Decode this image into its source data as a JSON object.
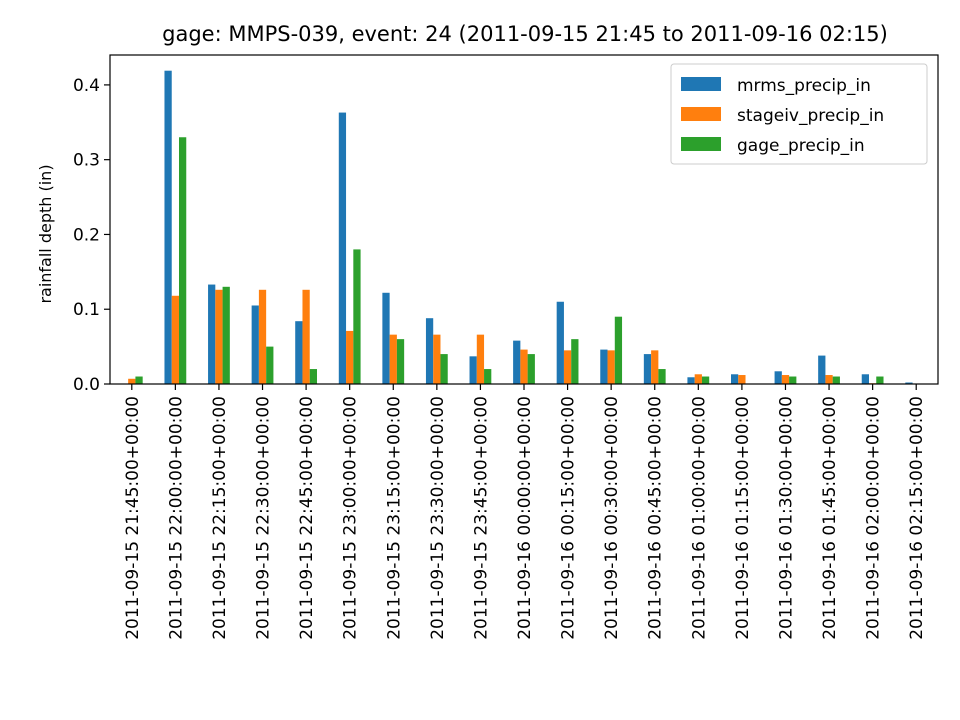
{
  "chart_data": {
    "type": "bar",
    "title": "gage: MMPS-039, event: 24 (2011-09-15 21:45 to 2011-09-16 02:15)",
    "xlabel": "",
    "ylabel": "rainfall depth (in)",
    "ylim": [
      0,
      0.44
    ],
    "yticks": [
      0.0,
      0.1,
      0.2,
      0.3,
      0.4
    ],
    "ytick_labels": [
      "0.0",
      "0.1",
      "0.2",
      "0.3",
      "0.4"
    ],
    "grid": false,
    "legend_position": "upper right",
    "categories": [
      "2011-09-15 21:45:00+00:00",
      "2011-09-15 22:00:00+00:00",
      "2011-09-15 22:15:00+00:00",
      "2011-09-15 22:30:00+00:00",
      "2011-09-15 22:45:00+00:00",
      "2011-09-15 23:00:00+00:00",
      "2011-09-15 23:15:00+00:00",
      "2011-09-15 23:30:00+00:00",
      "2011-09-15 23:45:00+00:00",
      "2011-09-16 00:00:00+00:00",
      "2011-09-16 00:15:00+00:00",
      "2011-09-16 00:30:00+00:00",
      "2011-09-16 00:45:00+00:00",
      "2011-09-16 01:00:00+00:00",
      "2011-09-16 01:15:00+00:00",
      "2011-09-16 01:30:00+00:00",
      "2011-09-16 01:45:00+00:00",
      "2011-09-16 02:00:00+00:00",
      "2011-09-16 02:15:00+00:00"
    ],
    "series": [
      {
        "name": "mrms_precip_in",
        "color": "#1f77b4",
        "values": [
          0.0,
          0.419,
          0.133,
          0.105,
          0.084,
          0.363,
          0.122,
          0.088,
          0.037,
          0.058,
          0.11,
          0.046,
          0.04,
          0.009,
          0.013,
          0.017,
          0.038,
          0.013,
          0.002
        ]
      },
      {
        "name": "stageiv_precip_in",
        "color": "#ff7f0e",
        "values": [
          0.007,
          0.118,
          0.126,
          0.126,
          0.126,
          0.071,
          0.066,
          0.066,
          0.066,
          0.046,
          0.045,
          0.045,
          0.045,
          0.013,
          0.012,
          0.012,
          0.012,
          0.001,
          0.0
        ]
      },
      {
        "name": "gage_precip_in",
        "color": "#2ca02c",
        "values": [
          0.01,
          0.33,
          0.13,
          0.05,
          0.02,
          0.18,
          0.06,
          0.04,
          0.02,
          0.04,
          0.06,
          0.09,
          0.02,
          0.01,
          0.0,
          0.01,
          0.01,
          0.01,
          0.0
        ]
      }
    ]
  }
}
